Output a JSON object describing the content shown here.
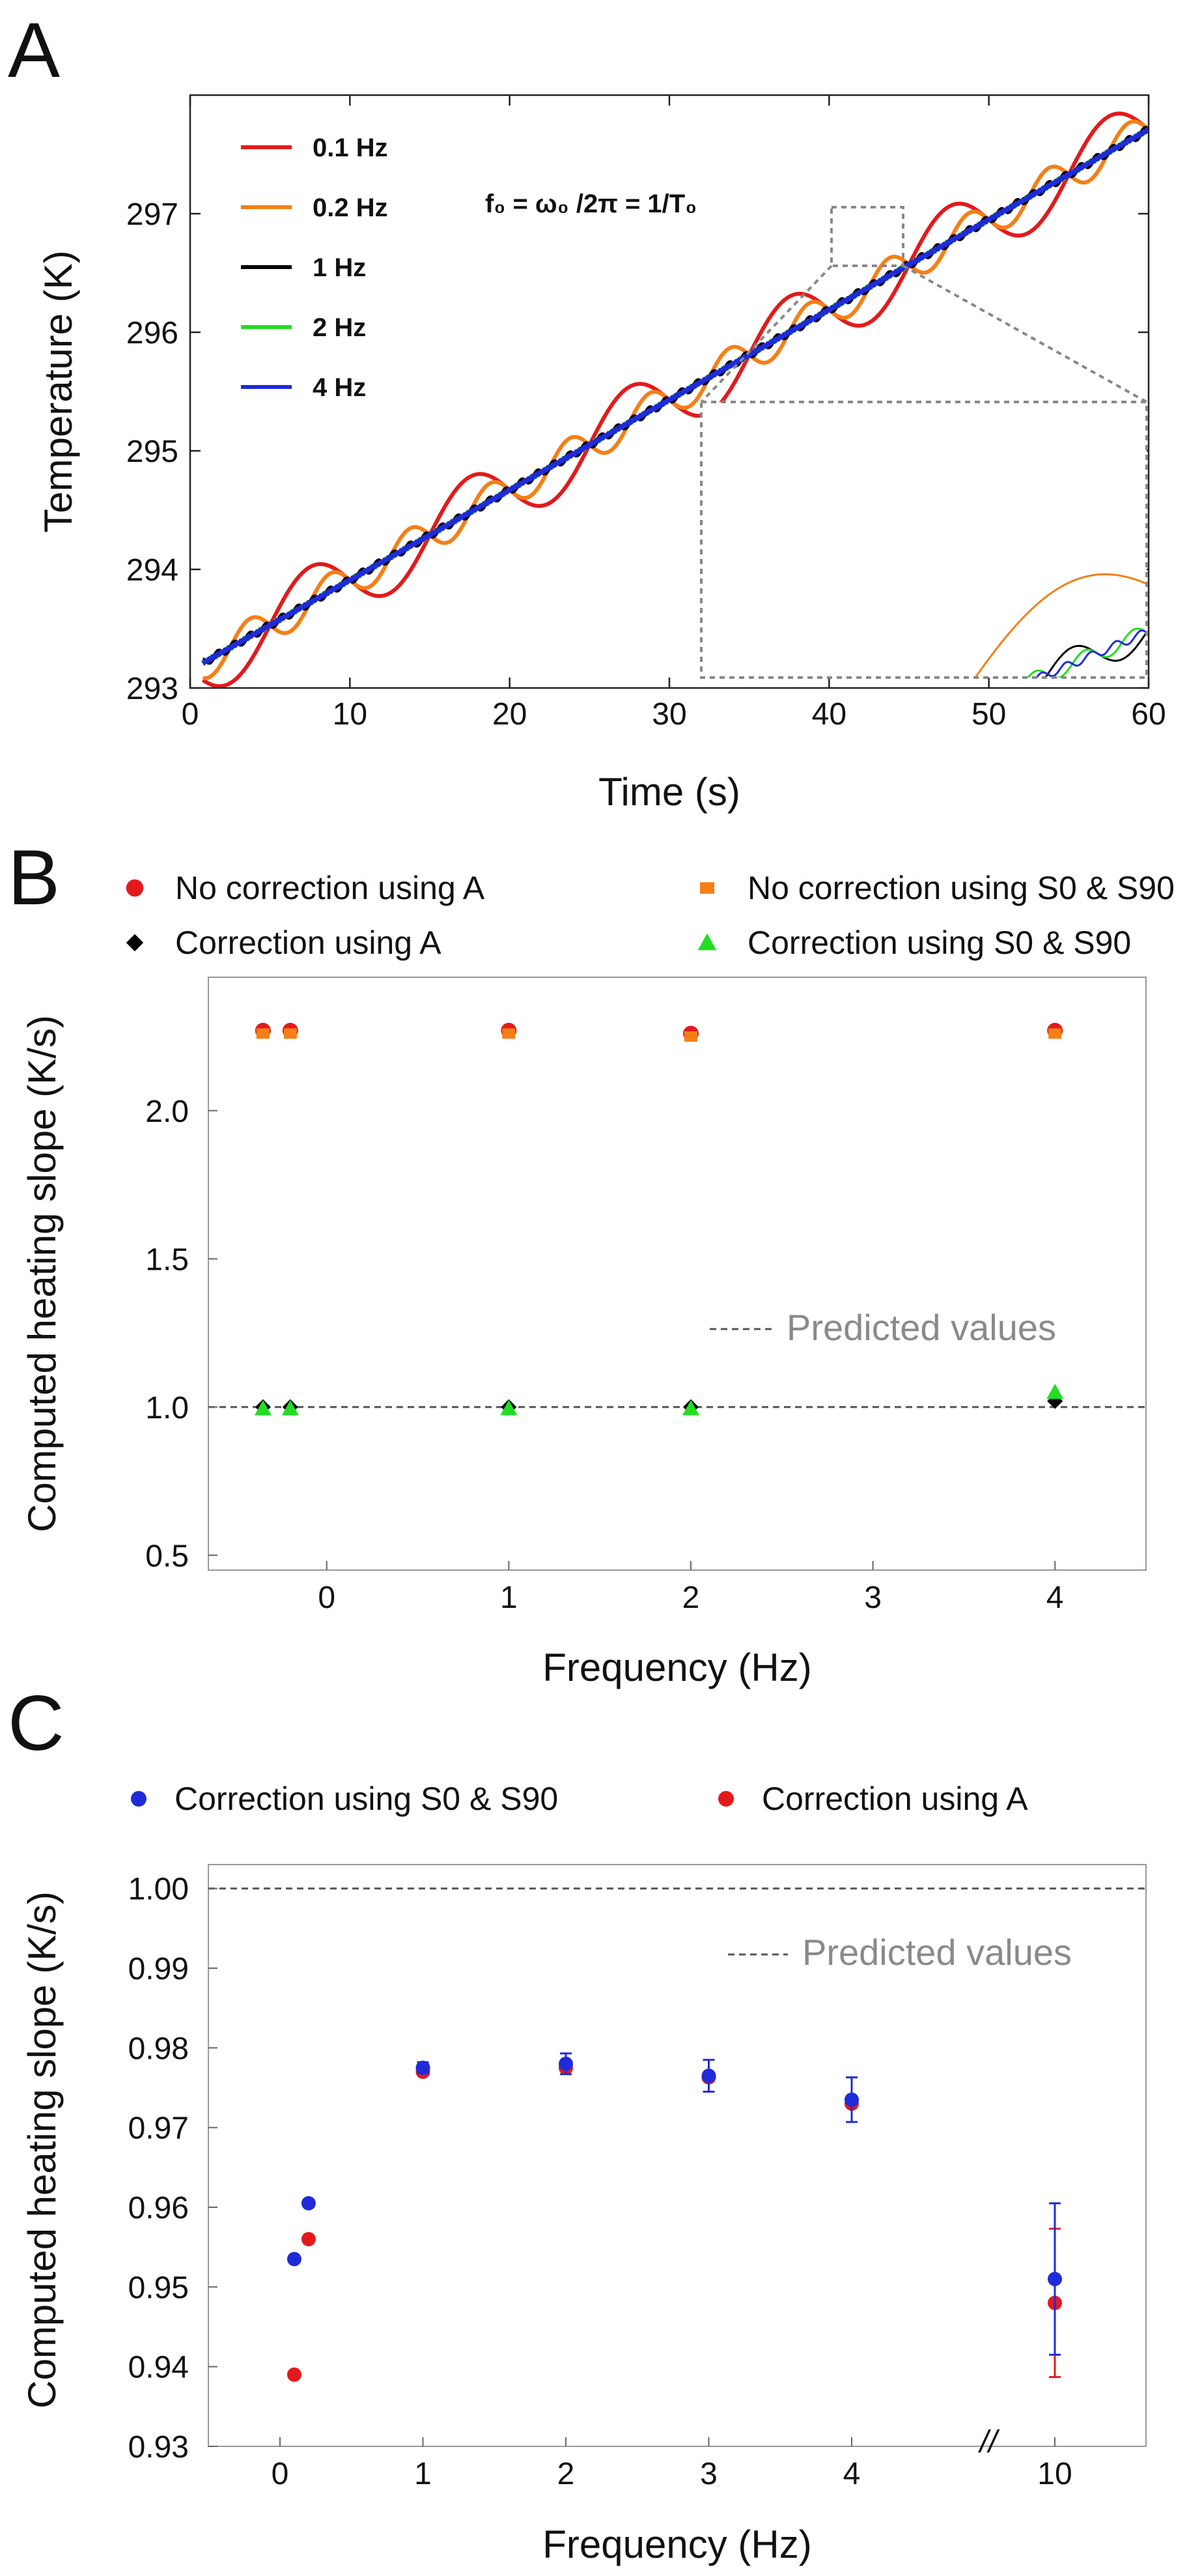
{
  "chart_data": [
    {
      "panel": "A",
      "type": "line",
      "xlabel": "Time (s)",
      "ylabel": "Temperature (K)",
      "xlim": [
        0,
        60
      ],
      "ylim": [
        293,
        298
      ],
      "xticks": [
        "0",
        "10",
        "20",
        "30",
        "40",
        "50",
        "60"
      ],
      "yticks": [
        "293",
        "294",
        "295",
        "296",
        "297"
      ],
      "annotation": "f₀ =  ω₀ /2π = 1/T₀",
      "series": [
        {
          "name": "0.1 Hz",
          "freq": 0.1,
          "color": "#e31a1c"
        },
        {
          "name": "0.2 Hz",
          "freq": 0.2,
          "color": "#f57f17"
        },
        {
          "name": "1 Hz",
          "freq": 1,
          "color": "#000000"
        },
        {
          "name": "2 Hz",
          "freq": 2,
          "color": "#22dd22"
        },
        {
          "name": "4 Hz",
          "freq": 4,
          "color": "#1f2bd8"
        }
      ],
      "model": {
        "start_K": 293.15,
        "slope_K_per_s": 0.076,
        "oscillation_amplitude_K_at_0_1Hz": 0.3
      },
      "inset": {
        "zoom_x": [
          40,
          44.5
        ],
        "zoom_y": [
          296.45,
          296.95
        ]
      }
    },
    {
      "panel": "B",
      "type": "scatter",
      "xlabel": "Frequency (Hz)",
      "ylabel": "Computed heating slope (K/s)",
      "xlim": [
        -0.65,
        4.5
      ],
      "ylim": [
        0.45,
        2.45
      ],
      "xticks": [
        "0",
        "1",
        "2",
        "3",
        "4"
      ],
      "yticks": [
        "0.5",
        "1.0",
        "1.5",
        "2.0"
      ],
      "predicted": {
        "value": 1.0,
        "label": "Predicted values"
      },
      "series": [
        {
          "name": "No correction using A",
          "marker": "circle",
          "color": "#e31a1c",
          "x": [
            -0.35,
            -0.2,
            1,
            2,
            4
          ],
          "y": [
            2.27,
            2.27,
            2.27,
            2.26,
            2.27
          ]
        },
        {
          "name": "No correction using S0 & S90",
          "marker": "square",
          "color": "#f57f17",
          "x": [
            -0.35,
            -0.2,
            1,
            2,
            4
          ],
          "y": [
            2.26,
            2.26,
            2.26,
            2.25,
            2.26
          ]
        },
        {
          "name": "Correction using A",
          "marker": "diamond",
          "color": "#000000",
          "x": [
            -0.35,
            -0.2,
            1,
            2,
            4
          ],
          "y": [
            1.0,
            1.0,
            1.0,
            1.0,
            1.02
          ]
        },
        {
          "name": "Correction using S0 & S90",
          "marker": "triangle",
          "color": "#22dd22",
          "x": [
            -0.35,
            -0.2,
            1,
            2,
            4
          ],
          "y": [
            0.995,
            0.995,
            0.995,
            0.995,
            1.05
          ]
        }
      ]
    },
    {
      "panel": "C",
      "type": "scatter",
      "xlabel": "Frequency (Hz)",
      "ylabel": "Computed heating slope (K/s)",
      "ylim": [
        0.93,
        1.003
      ],
      "xticks": [
        "0",
        "1",
        "2",
        "3",
        "4",
        "10"
      ],
      "yticks": [
        "0.93",
        "0.94",
        "0.95",
        "0.96",
        "0.97",
        "0.98",
        "0.99",
        "1.00"
      ],
      "axis_break": "//",
      "predicted": {
        "value": 1.0,
        "label": "Predicted values"
      },
      "series": [
        {
          "name": "Correction using S0 & S90",
          "color": "#1f2bd8",
          "x": [
            0.1,
            0.2,
            1,
            2,
            3,
            4,
            10
          ],
          "y": [
            0.9535,
            0.9605,
            0.9775,
            0.978,
            0.9765,
            0.9735,
            0.951
          ],
          "err": [
            0,
            0,
            0.0007,
            0.0013,
            0.002,
            0.0028,
            0.0095
          ]
        },
        {
          "name": "Correction using A",
          "color": "#e31a1c",
          "x": [
            0.1,
            0.2,
            1,
            2,
            3,
            4,
            10
          ],
          "y": [
            0.939,
            0.956,
            0.977,
            0.9775,
            0.9763,
            0.973,
            0.948
          ],
          "err": [
            0,
            0,
            0,
            0,
            0,
            0,
            0.0093
          ]
        }
      ]
    }
  ],
  "panels": {
    "A": "A",
    "B": "B",
    "C": "C"
  }
}
